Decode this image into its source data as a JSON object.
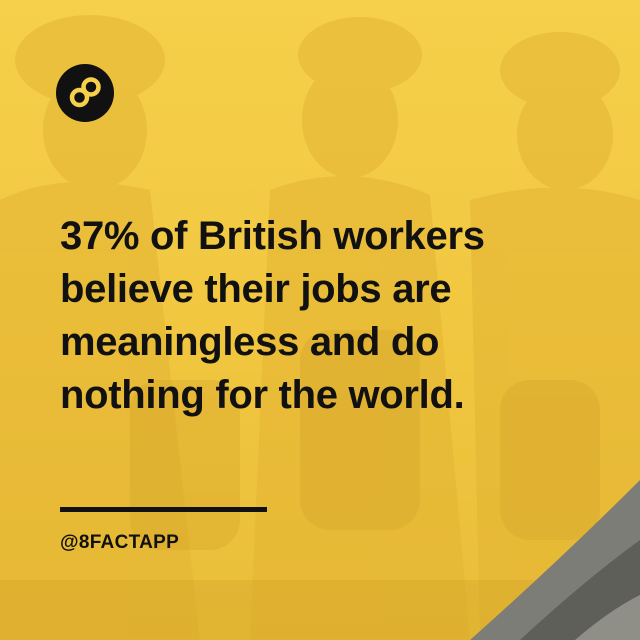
{
  "brand": {
    "logo_icon": "infinity-eight-icon",
    "handle": "@8FACTAPP"
  },
  "fact": {
    "lines": [
      "37% of British workers",
      "believe their jobs are",
      "meaningless and do",
      "nothing for the world."
    ]
  },
  "colors": {
    "background": "#f2c744",
    "text": "#111111",
    "photo_tint": "#d9a92a"
  }
}
